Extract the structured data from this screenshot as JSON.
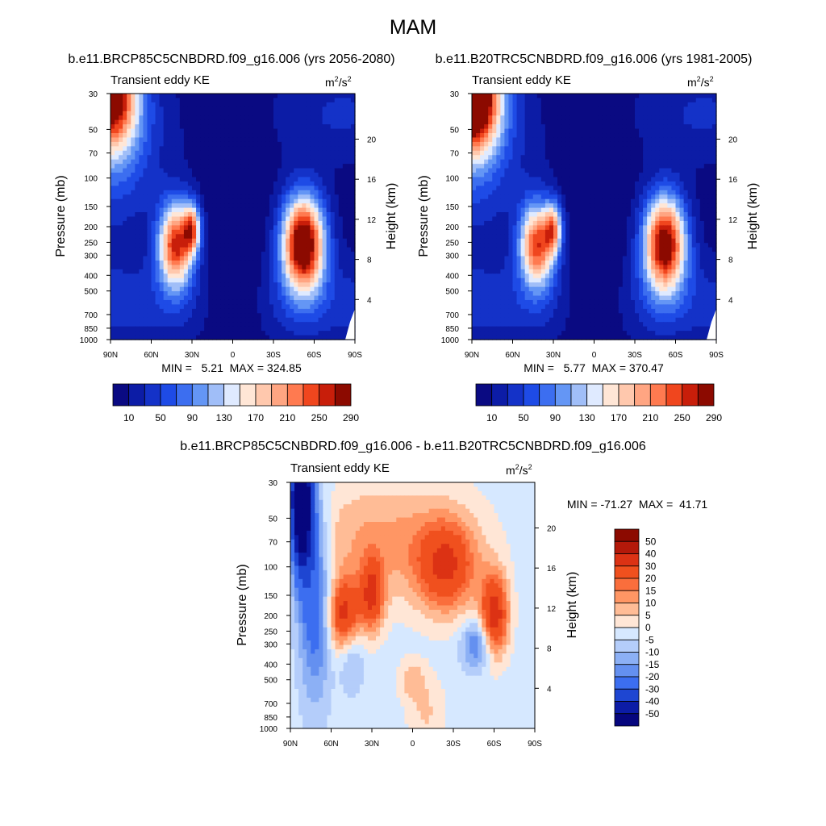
{
  "figure": {
    "title": "MAM"
  },
  "chart_data": [
    {
      "type": "heatmap",
      "title": "b.e11.BRCP85C5CNBDRD.f09_g16.006 (yrs 2056-2080)",
      "subtitle_left": "Transient eddy KE",
      "units_base": "m",
      "units_mid": "/s",
      "units_exp": "2",
      "ylabel": "Pressure (mb)",
      "y2label": "Height (km)",
      "xticks": [
        "90N",
        "60N",
        "30N",
        "0",
        "30S",
        "60S",
        "90S"
      ],
      "x_values": [
        90,
        60,
        30,
        0,
        -30,
        -60,
        -90
      ],
      "yticks": [
        "30",
        "50",
        "70",
        "100",
        "150",
        "200",
        "250",
        "300",
        "400",
        "500",
        "700",
        "850",
        "1000"
      ],
      "y_values": [
        30,
        50,
        70,
        100,
        150,
        200,
        250,
        300,
        400,
        500,
        700,
        850,
        1000
      ],
      "y2ticks": [
        "20",
        "16",
        "12",
        "8",
        "4"
      ],
      "y2_values": [
        20,
        16,
        12,
        8,
        4
      ],
      "stats": "MIN =   5.21  MAX = 324.85",
      "min": 5.21,
      "max": 324.85,
      "colorbar": {
        "orientation": "horizontal",
        "labels": [
          "10",
          "50",
          "90",
          "130",
          "170",
          "210",
          "250",
          "290"
        ],
        "colors": [
          "#0a0a82",
          "#0c1ca6",
          "#1432c8",
          "#1e4be6",
          "#3c6ef0",
          "#6496f5",
          "#a0bef8",
          "#dfeaff",
          "#ffe6d6",
          "#ffc8ad",
          "#ffa582",
          "#ff7a50",
          "#f0461e",
          "#c81e0a",
          "#8c0a00"
        ]
      },
      "features": [
        {
          "name": "jet-nh",
          "lat": 40,
          "p": 250,
          "value": 250
        },
        {
          "name": "jet-nh-upper",
          "lat": 30,
          "p": 200,
          "value": 240
        },
        {
          "name": "jet-sh",
          "lat": -52,
          "p": 250,
          "value": 324.85
        },
        {
          "name": "strat-nh",
          "lat": 85,
          "p": 30,
          "value": 280
        }
      ]
    },
    {
      "type": "heatmap",
      "title": "b.e11.B20TRC5CNBDRD.f09_g16.006 (yrs 1981-2005)",
      "subtitle_left": "Transient eddy KE",
      "units_base": "m",
      "units_mid": "/s",
      "units_exp": "2",
      "ylabel": "Pressure (mb)",
      "y2label": "Height (km)",
      "xticks": [
        "90N",
        "60N",
        "30N",
        "0",
        "30S",
        "60S",
        "90S"
      ],
      "x_values": [
        90,
        60,
        30,
        0,
        -30,
        -60,
        -90
      ],
      "yticks": [
        "30",
        "50",
        "70",
        "100",
        "150",
        "200",
        "250",
        "300",
        "400",
        "500",
        "700",
        "850",
        "1000"
      ],
      "y_values": [
        30,
        50,
        70,
        100,
        150,
        200,
        250,
        300,
        400,
        500,
        700,
        850,
        1000
      ],
      "y2ticks": [
        "20",
        "16",
        "12",
        "8",
        "4"
      ],
      "y2_values": [
        20,
        16,
        12,
        8,
        4
      ],
      "stats": "MIN =   5.77  MAX = 370.47",
      "min": 5.77,
      "max": 370.47,
      "colorbar": {
        "orientation": "horizontal",
        "labels": [
          "10",
          "50",
          "90",
          "130",
          "170",
          "210",
          "250",
          "290"
        ],
        "colors": [
          "#0a0a82",
          "#0c1ca6",
          "#1432c8",
          "#1e4be6",
          "#3c6ef0",
          "#6496f5",
          "#a0bef8",
          "#dfeaff",
          "#ffe6d6",
          "#ffc8ad",
          "#ffa582",
          "#ff7a50",
          "#f0461e",
          "#c81e0a",
          "#8c0a00"
        ]
      },
      "features": [
        {
          "name": "jet-nh",
          "lat": 40,
          "p": 250,
          "value": 240
        },
        {
          "name": "jet-nh-upper",
          "lat": 30,
          "p": 200,
          "value": 220
        },
        {
          "name": "jet-sh",
          "lat": -52,
          "p": 250,
          "value": 300
        },
        {
          "name": "strat-nh",
          "lat": 85,
          "p": 30,
          "value": 370.47
        }
      ]
    },
    {
      "type": "heatmap",
      "title": "b.e11.BRCP85C5CNBDRD.f09_g16.006 - b.e11.B20TRC5CNBDRD.f09_g16.006",
      "subtitle_left": "Transient eddy KE",
      "units_base": "m",
      "units_mid": "/s",
      "units_exp": "2",
      "ylabel": "Pressure (mb)",
      "y2label": "Height (km)",
      "xticks": [
        "90N",
        "60N",
        "30N",
        "0",
        "30S",
        "60S",
        "90S"
      ],
      "x_values": [
        90,
        60,
        30,
        0,
        -30,
        -60,
        -90
      ],
      "yticks": [
        "30",
        "50",
        "70",
        "100",
        "150",
        "200",
        "250",
        "300",
        "400",
        "500",
        "700",
        "850",
        "1000"
      ],
      "y_values": [
        30,
        50,
        70,
        100,
        150,
        200,
        250,
        300,
        400,
        500,
        700,
        850,
        1000
      ],
      "y2ticks": [
        "20",
        "16",
        "12",
        "8",
        "4"
      ],
      "y2_values": [
        20,
        16,
        12,
        8,
        4
      ],
      "stats": "MIN = -71.27  MAX =  41.71",
      "min": -71.27,
      "max": 41.71,
      "colorbar": {
        "orientation": "vertical",
        "labels": [
          "50",
          "40",
          "30",
          "20",
          "15",
          "10",
          "5",
          "0",
          "-5",
          "-10",
          "-15",
          "-20",
          "-30",
          "-40",
          "-50"
        ],
        "colors": [
          "#8c0a00",
          "#b4190a",
          "#dc3214",
          "#f0501e",
          "#fa6e3c",
          "#ff9664",
          "#ffbc96",
          "#ffe6d6",
          "#d6e8ff",
          "#b4cdfa",
          "#8cb0f5",
          "#6490f0",
          "#3c6ef0",
          "#1e46d2",
          "#0c1ca6",
          "#06067e"
        ]
      },
      "features": [
        {
          "name": "strat-nh-decrease",
          "lat": 80,
          "p": 35,
          "value": -71.27
        },
        {
          "name": "nh-increase",
          "lat": 50,
          "p": 200,
          "value": 35
        },
        {
          "name": "nh-upper-increase",
          "lat": 30,
          "p": 150,
          "value": 41.71
        },
        {
          "name": "sh-increase",
          "lat": -60,
          "p": 200,
          "value": 40
        },
        {
          "name": "sh-upper-increase",
          "lat": -20,
          "p": 100,
          "value": 30
        },
        {
          "name": "sh-decrease",
          "lat": -48,
          "p": 300,
          "value": -20
        }
      ]
    }
  ]
}
